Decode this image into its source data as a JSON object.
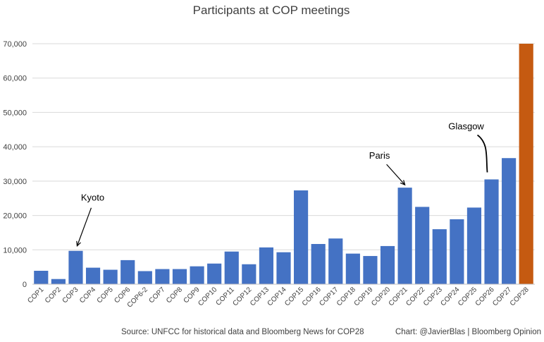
{
  "chart_data": {
    "type": "bar",
    "title": "Participants at COP meetings",
    "xlabel": "",
    "ylabel": "",
    "ylim": [
      0,
      70000
    ],
    "yticks": [
      0,
      10000,
      20000,
      30000,
      40000,
      50000,
      60000,
      70000
    ],
    "ytick_labels": [
      "0",
      "10,000",
      "20,000",
      "30,000",
      "40,000",
      "50,000",
      "60,000",
      "70,000"
    ],
    "grid": true,
    "legend": "none",
    "categories": [
      "COP1",
      "COP2",
      "COP3",
      "COP4",
      "COP5",
      "COP6",
      "COP6-2",
      "COP7",
      "COP8",
      "COP9",
      "COP10",
      "COP11",
      "COP12",
      "COP13",
      "COP14",
      "COP15",
      "COP16",
      "COP17",
      "COP18",
      "COP19",
      "COP20",
      "COP21",
      "COP22",
      "COP23",
      "COP24",
      "COP25",
      "COP26",
      "COP27",
      "COP28"
    ],
    "values": [
      3900,
      1500,
      9700,
      4800,
      4200,
      7000,
      3800,
      4400,
      4400,
      5200,
      6000,
      9500,
      5800,
      10700,
      9300,
      27300,
      11700,
      13300,
      8900,
      8200,
      11100,
      28100,
      22500,
      16000,
      18900,
      22300,
      30500,
      36700,
      70000
    ],
    "colors": {
      "bar": "#4472c4",
      "highlight": "#c55a11",
      "highlight_category": "COP28"
    },
    "annotations": [
      {
        "text": "Kyoto",
        "target": "COP3"
      },
      {
        "text": "Paris",
        "target": "COP21"
      },
      {
        "text": "Glasgow",
        "target": "COP26"
      }
    ],
    "source": "Source: UNFCC for historical data and Bloomberg News for COP28",
    "credit": "Chart: @JavierBlas | Bloomberg Opinion"
  }
}
